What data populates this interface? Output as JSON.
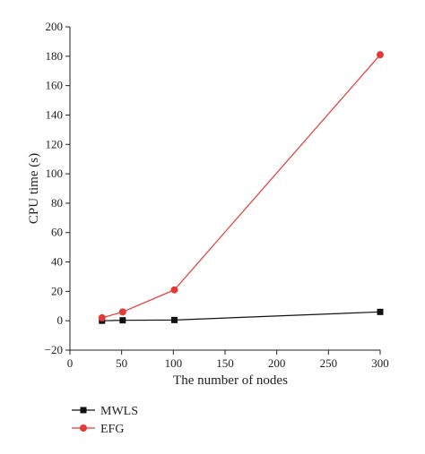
{
  "chart_data": {
    "type": "line",
    "xlabel": "The number of nodes",
    "ylabel": "CPU time (s)",
    "xlim": [
      0,
      300
    ],
    "ylim": [
      -20,
      200
    ],
    "xticks": [
      0,
      50,
      100,
      150,
      200,
      250,
      300
    ],
    "yticks": [
      -20,
      0,
      20,
      40,
      60,
      80,
      100,
      120,
      140,
      160,
      180,
      200
    ],
    "grid": false,
    "legend_position": "bottom-left",
    "series": [
      {
        "name": "MWLS",
        "color": "#111111",
        "marker": "square",
        "x": [
          31,
          51,
          101,
          300
        ],
        "y": [
          0,
          0.3,
          0.5,
          6
        ]
      },
      {
        "name": "EFG",
        "color": "#e53935",
        "marker": "circle",
        "x": [
          31,
          51,
          101,
          300
        ],
        "y": [
          2,
          6,
          21,
          181
        ]
      }
    ]
  }
}
